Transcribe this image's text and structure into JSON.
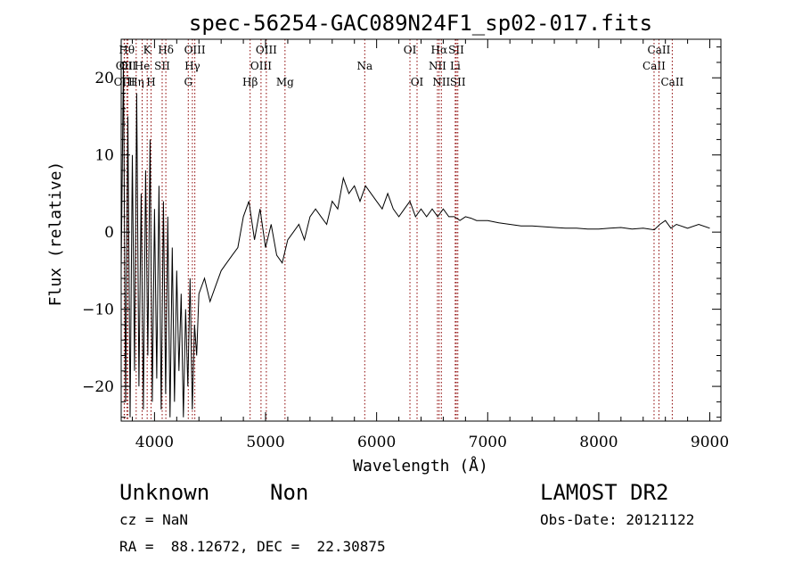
{
  "chart_data": {
    "type": "line",
    "title": "spec-56254-GAC089N24F1_sp02-017.fits",
    "xlabel": "Wavelength (Å)",
    "ylabel": "Flux (relative)",
    "xlim": [
      3700,
      9100
    ],
    "ylim": [
      -24.5,
      25
    ],
    "x_ticks": [
      4000,
      5000,
      6000,
      7000,
      8000,
      9000
    ],
    "y_ticks": [
      -20,
      -10,
      0,
      10,
      20
    ],
    "grid": false,
    "legend": "none",
    "line_color": "#000000",
    "marker_color": "#8b0000",
    "series": [
      {
        "x": [
          3700,
          3720,
          3740,
          3760,
          3780,
          3800,
          3820,
          3840,
          3860,
          3880,
          3900,
          3920,
          3940,
          3960,
          3980,
          4000,
          4020,
          4040,
          4060,
          4080,
          4100,
          4120,
          4140,
          4160,
          4180,
          4200,
          4220,
          4240,
          4260,
          4280,
          4300,
          4320,
          4340,
          4360,
          4380,
          4400,
          4450,
          4500,
          4550,
          4600,
          4650,
          4700,
          4750,
          4800,
          4850,
          4900,
          4950,
          5000,
          5050,
          5100,
          5150,
          5200,
          5250,
          5300,
          5350,
          5400,
          5450,
          5500,
          5550,
          5600,
          5650,
          5700,
          5750,
          5800,
          5850,
          5900,
          5950,
          6000,
          6050,
          6100,
          6150,
          6200,
          6250,
          6300,
          6350,
          6400,
          6450,
          6500,
          6550,
          6600,
          6650,
          6700,
          6750,
          6800,
          6850,
          6900,
          6950,
          7000,
          7100,
          7200,
          7300,
          7400,
          7500,
          7600,
          7700,
          7800,
          7900,
          8000,
          8100,
          8200,
          8300,
          8400,
          8500,
          8550,
          8600,
          8650,
          8700,
          8800,
          8900,
          9000
        ],
        "y": [
          -5,
          22,
          -22,
          15,
          -24,
          10,
          -18,
          18,
          -20,
          5,
          -23,
          8,
          -16,
          12,
          -22,
          3,
          -19,
          6,
          -23,
          4,
          -21,
          2,
          -24,
          -2,
          -22,
          -5,
          -18,
          -8,
          -24,
          -10,
          -20,
          -6,
          -23,
          -12,
          -16,
          -8,
          -6,
          -9,
          -7,
          -5,
          -4,
          -3,
          -2,
          2,
          4,
          -1,
          3,
          -2,
          1,
          -3,
          -4,
          -1,
          0,
          1,
          -1,
          2,
          3,
          2,
          1,
          4,
          3,
          7,
          5,
          6,
          4,
          6,
          5,
          4,
          3,
          5,
          3,
          2,
          3,
          4,
          2,
          3,
          2,
          3,
          2,
          3,
          2,
          2,
          1.5,
          2,
          1.8,
          1.5,
          1.5,
          1.5,
          1.2,
          1,
          0.8,
          0.8,
          0.7,
          0.6,
          0.5,
          0.5,
          0.4,
          0.4,
          0.5,
          0.6,
          0.4,
          0.5,
          0.3,
          1,
          1.5,
          0.5,
          1,
          0.5,
          1,
          0.5
        ]
      }
    ],
    "lines": [
      {
        "label": "OII",
        "x": 3727,
        "row": 1
      },
      {
        "label": "OIII",
        "x": 3729,
        "row": 2
      },
      {
        "label": "Hθ",
        "x": 3750,
        "row": 0
      },
      {
        "label": "OII",
        "x": 3760,
        "row": 1
      },
      {
        "label": "Hη",
        "x": 3835,
        "row": 2
      },
      {
        "label": "K",
        "x": 3934,
        "row": 0
      },
      {
        "label": "He",
        "x": 3889,
        "row": 1
      },
      {
        "label": "H",
        "x": 3969,
        "row": 2
      },
      {
        "label": "SII",
        "x": 4069,
        "row": 1
      },
      {
        "label": "Hδ",
        "x": 4102,
        "row": 0
      },
      {
        "label": "G",
        "x": 4304,
        "row": 2
      },
      {
        "label": "Hγ",
        "x": 4341,
        "row": 1
      },
      {
        "label": "OIII",
        "x": 4363,
        "row": 0
      },
      {
        "label": "Hβ",
        "x": 4861,
        "row": 2
      },
      {
        "label": "OIII",
        "x": 4959,
        "row": 1
      },
      {
        "label": "OIII",
        "x": 5007,
        "row": 0
      },
      {
        "label": "Mg",
        "x": 5175,
        "row": 2
      },
      {
        "label": "Na",
        "x": 5893,
        "row": 1
      },
      {
        "label": "OI",
        "x": 6300,
        "row": 0
      },
      {
        "label": "OI",
        "x": 6364,
        "row": 2
      },
      {
        "label": "NII",
        "x": 6548,
        "row": 1
      },
      {
        "label": "Hα",
        "x": 6563,
        "row": 0
      },
      {
        "label": "NII",
        "x": 6583,
        "row": 2
      },
      {
        "label": "Li",
        "x": 6708,
        "row": 1
      },
      {
        "label": "SII",
        "x": 6717,
        "row": 0
      },
      {
        "label": "SII",
        "x": 6731,
        "row": 2
      },
      {
        "label": "CaII",
        "x": 8498,
        "row": 1
      },
      {
        "label": "CaII",
        "x": 8542,
        "row": 0
      },
      {
        "label": "CaII",
        "x": 8662,
        "row": 2
      }
    ]
  },
  "footer": {
    "object_class": "Unknown",
    "object_subclass": "Non",
    "survey": "LAMOST DR2",
    "redshift": "cz = NaN",
    "obs_date": "Obs-Date: 20121122",
    "coordinates": "RA =  88.12672, DEC =  22.30875"
  }
}
